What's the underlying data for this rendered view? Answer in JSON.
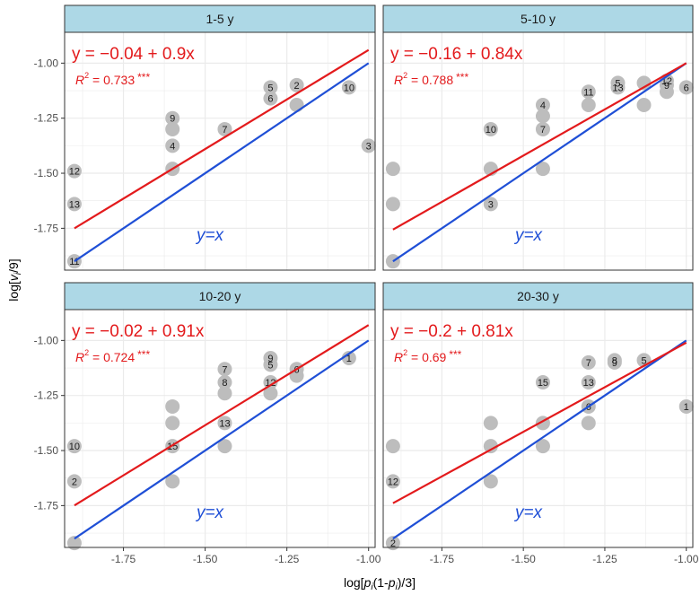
{
  "chart_data": {
    "type": "scatter",
    "xlabel": "log[p_i(1-p_i)/3]",
    "ylabel": "log[v_i/9]",
    "xlim": [
      -1.93,
      -0.98
    ],
    "ylim": [
      -1.94,
      -0.86
    ],
    "x_ticks": [
      -1.75,
      -1.5,
      -1.25,
      -1.0
    ],
    "x_tick_labels": [
      "-1.75",
      "-1.50",
      "-1.25",
      "-1.00"
    ],
    "y_ticks": [
      -1.75,
      -1.5,
      -1.25,
      -1.0
    ],
    "y_tick_labels": [
      "-1.75",
      "-1.50",
      "-1.25",
      "-1.00"
    ],
    "colors": {
      "fit": "#e31a1c",
      "identity": "#1f4fd6",
      "point": "#bdbdbd",
      "strip": "#add8e6",
      "panel_bg": "#ffffff",
      "grid": "#ebebeb"
    },
    "identity_label": "y=x",
    "panels": [
      {
        "title": "1-5 y",
        "equation": "y = −0.04 + 0.9x",
        "r2_label": "R",
        "r2_value": "= 0.733",
        "r2_stars": "***",
        "fit": {
          "intercept": -0.04,
          "slope": 0.9
        },
        "points": [
          {
            "x": -1.9,
            "y": -1.49,
            "label": "12"
          },
          {
            "x": -1.9,
            "y": -1.64,
            "label": "13"
          },
          {
            "x": -1.9,
            "y": -1.9,
            "label": "11"
          },
          {
            "x": -1.6,
            "y": -1.25,
            "label": "9"
          },
          {
            "x": -1.6,
            "y": -1.3,
            "label": ""
          },
          {
            "x": -1.6,
            "y": -1.375,
            "label": "4"
          },
          {
            "x": -1.6,
            "y": -1.48,
            "label": ""
          },
          {
            "x": -1.44,
            "y": -1.3,
            "label": "7"
          },
          {
            "x": -1.3,
            "y": -1.11,
            "label": "5"
          },
          {
            "x": -1.3,
            "y": -1.16,
            "label": "6"
          },
          {
            "x": -1.22,
            "y": -1.1,
            "label": "2"
          },
          {
            "x": -1.22,
            "y": -1.19,
            "label": ""
          },
          {
            "x": -1.06,
            "y": -1.11,
            "label": "10"
          },
          {
            "x": -1.0,
            "y": -1.375,
            "label": "3"
          }
        ]
      },
      {
        "title": "5-10 y",
        "equation": "y = −0.16 + 0.84x",
        "r2_label": "R",
        "r2_value": "= 0.788",
        "r2_stars": "***",
        "fit": {
          "intercept": -0.16,
          "slope": 0.84
        },
        "points": [
          {
            "x": -1.9,
            "y": -1.48,
            "label": ""
          },
          {
            "x": -1.9,
            "y": -1.64,
            "label": ""
          },
          {
            "x": -1.9,
            "y": -1.9,
            "label": ""
          },
          {
            "x": -1.6,
            "y": -1.3,
            "label": "10"
          },
          {
            "x": -1.6,
            "y": -1.48,
            "label": ""
          },
          {
            "x": -1.6,
            "y": -1.64,
            "label": "3"
          },
          {
            "x": -1.44,
            "y": -1.19,
            "label": "4"
          },
          {
            "x": -1.44,
            "y": -1.24,
            "label": ""
          },
          {
            "x": -1.44,
            "y": -1.3,
            "label": "7"
          },
          {
            "x": -1.44,
            "y": -1.48,
            "label": ""
          },
          {
            "x": -1.3,
            "y": -1.13,
            "label": "11"
          },
          {
            "x": -1.3,
            "y": -1.19,
            "label": ""
          },
          {
            "x": -1.21,
            "y": -1.09,
            "label": "5"
          },
          {
            "x": -1.21,
            "y": -1.11,
            "label": "13"
          },
          {
            "x": -1.13,
            "y": -1.09,
            "label": ""
          },
          {
            "x": -1.13,
            "y": -1.19,
            "label": ""
          },
          {
            "x": -1.06,
            "y": -1.08,
            "label": "12"
          },
          {
            "x": -1.06,
            "y": -1.1,
            "label": "9"
          },
          {
            "x": -1.06,
            "y": -1.13,
            "label": ""
          },
          {
            "x": -1.0,
            "y": -1.11,
            "label": "6"
          }
        ]
      },
      {
        "title": "10-20 y",
        "equation": "y = −0.02 + 0.91x",
        "r2_label": "R",
        "r2_value": "= 0.724",
        "r2_stars": "***",
        "fit": {
          "intercept": -0.02,
          "slope": 0.91
        },
        "points": [
          {
            "x": -1.9,
            "y": -1.48,
            "label": "10"
          },
          {
            "x": -1.9,
            "y": -1.64,
            "label": "2"
          },
          {
            "x": -1.9,
            "y": -1.92,
            "label": ""
          },
          {
            "x": -1.6,
            "y": -1.3,
            "label": ""
          },
          {
            "x": -1.6,
            "y": -1.375,
            "label": ""
          },
          {
            "x": -1.6,
            "y": -1.48,
            "label": "15"
          },
          {
            "x": -1.6,
            "y": -1.64,
            "label": ""
          },
          {
            "x": -1.44,
            "y": -1.13,
            "label": "7"
          },
          {
            "x": -1.44,
            "y": -1.19,
            "label": "8"
          },
          {
            "x": -1.44,
            "y": -1.24,
            "label": ""
          },
          {
            "x": -1.44,
            "y": -1.375,
            "label": "13"
          },
          {
            "x": -1.44,
            "y": -1.48,
            "label": ""
          },
          {
            "x": -1.3,
            "y": -1.08,
            "label": "9"
          },
          {
            "x": -1.3,
            "y": -1.11,
            "label": "5"
          },
          {
            "x": -1.3,
            "y": -1.19,
            "label": "12"
          },
          {
            "x": -1.3,
            "y": -1.24,
            "label": ""
          },
          {
            "x": -1.22,
            "y": -1.13,
            "label": "6"
          },
          {
            "x": -1.22,
            "y": -1.16,
            "label": ""
          },
          {
            "x": -1.06,
            "y": -1.08,
            "label": "1"
          }
        ]
      },
      {
        "title": "20-30 y",
        "equation": "y = −0.2 + 0.81x",
        "r2_label": "R",
        "r2_value": "= 0.69",
        "r2_stars": "***",
        "fit": {
          "intercept": -0.2,
          "slope": 0.81
        },
        "points": [
          {
            "x": -1.9,
            "y": -1.48,
            "label": ""
          },
          {
            "x": -1.9,
            "y": -1.64,
            "label": "12"
          },
          {
            "x": -1.9,
            "y": -1.92,
            "label": "2"
          },
          {
            "x": -1.6,
            "y": -1.375,
            "label": ""
          },
          {
            "x": -1.6,
            "y": -1.48,
            "label": ""
          },
          {
            "x": -1.6,
            "y": -1.64,
            "label": ""
          },
          {
            "x": -1.44,
            "y": -1.19,
            "label": "15"
          },
          {
            "x": -1.44,
            "y": -1.375,
            "label": ""
          },
          {
            "x": -1.44,
            "y": -1.48,
            "label": ""
          },
          {
            "x": -1.3,
            "y": -1.1,
            "label": "7"
          },
          {
            "x": -1.3,
            "y": -1.19,
            "label": "13"
          },
          {
            "x": -1.3,
            "y": -1.3,
            "label": "6"
          },
          {
            "x": -1.3,
            "y": -1.375,
            "label": ""
          },
          {
            "x": -1.22,
            "y": -1.09,
            "label": "8"
          },
          {
            "x": -1.22,
            "y": -1.1,
            "label": "9"
          },
          {
            "x": -1.13,
            "y": -1.09,
            "label": "5"
          },
          {
            "x": -1.0,
            "y": -1.3,
            "label": "1"
          }
        ]
      }
    ]
  }
}
